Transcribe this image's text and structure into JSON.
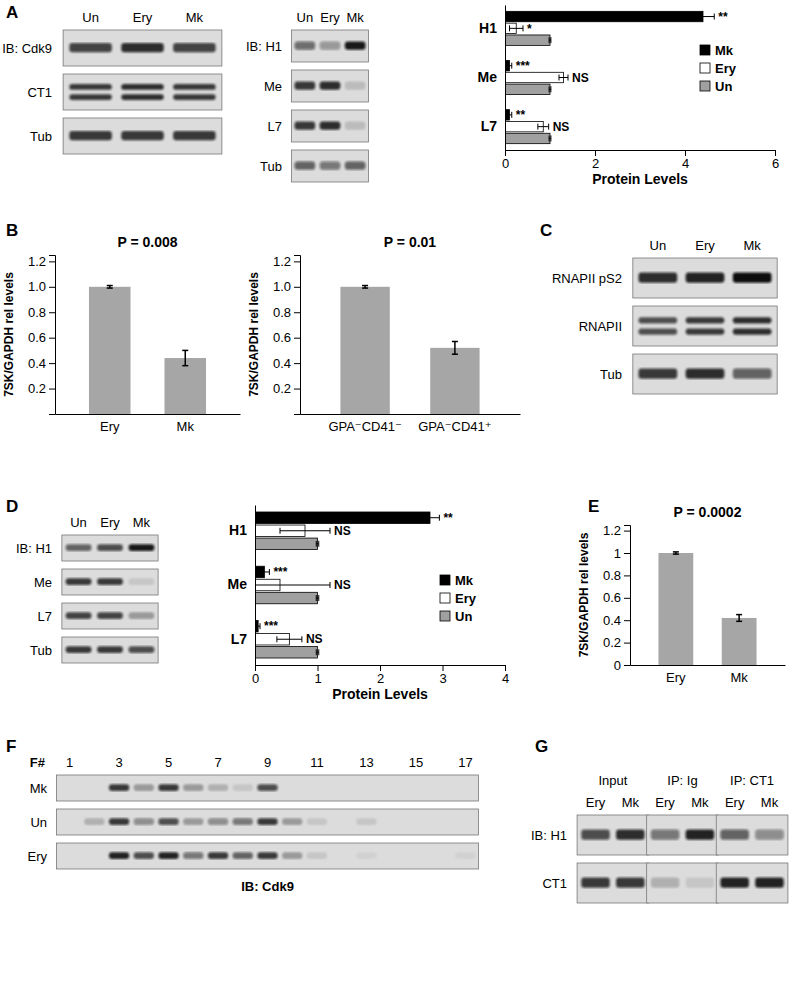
{
  "chart_data": [
    {
      "type": "blot",
      "panel_label": "A",
      "categories": [
        "Un",
        "Ery",
        "Mk"
      ],
      "series": [
        {
          "name": "IB: Cdk9",
          "values": [
            0.75,
            0.85,
            0.75
          ]
        },
        {
          "name": "CT1",
          "values": [
            0.8,
            0.85,
            0.8
          ],
          "marker": "double"
        },
        {
          "name": "Tub",
          "values": [
            0.8,
            0.8,
            0.8
          ]
        }
      ]
    },
    {
      "type": "blot",
      "categories": [
        "Un",
        "Ery",
        "Mk"
      ],
      "series": [
        {
          "name": "IB: H1",
          "values": [
            0.55,
            0.35,
            0.95
          ]
        },
        {
          "name": "Me",
          "values": [
            0.8,
            0.85,
            0.15
          ]
        },
        {
          "name": "L7",
          "values": [
            0.8,
            0.85,
            0.15
          ]
        },
        {
          "name": "Tub",
          "values": [
            0.6,
            0.5,
            0.6
          ]
        }
      ]
    },
    {
      "type": "bar",
      "orientation": "horizontal",
      "categories": [
        "H1",
        "Me",
        "L7"
      ],
      "xlabel": "Protein Levels",
      "xlim": [
        0,
        6
      ],
      "xticks": [
        0,
        2,
        4,
        6
      ],
      "legend": "right",
      "series": [
        {
          "name": "Mk",
          "color": "#000000",
          "values": [
            4.4,
            0.1,
            0.1
          ],
          "errors": [
            0.25,
            0.05,
            0.05
          ],
          "annotations": [
            "**",
            "***",
            "**"
          ]
        },
        {
          "name": "Ery",
          "color": "#ffffff",
          "values": [
            0.25,
            1.3,
            0.85
          ],
          "errors": [
            0.15,
            0.1,
            0.12
          ],
          "annotations": [
            "*",
            "NS",
            "NS"
          ]
        },
        {
          "name": "Un",
          "color": "#a0a0a0",
          "values": [
            1,
            1,
            1
          ],
          "errors": [
            0.02,
            0.02,
            0.02
          ]
        }
      ]
    },
    {
      "type": "bar",
      "panel_label": "B",
      "categories": [
        "Ery",
        "Mk"
      ],
      "values": [
        1,
        0.44
      ],
      "errors": [
        0.01,
        0.06
      ],
      "color": "#a6a6a6",
      "ylabel": "7SK/GAPDH rel levels",
      "annotation": "P = 0.008",
      "ylim": [
        0,
        1.25
      ],
      "yticks": [
        0.2,
        0.4,
        0.6,
        0.8,
        {
          "value": 1,
          "label": "1.0"
        },
        1.2
      ]
    },
    {
      "type": "bar",
      "categories": [
        "GPA⁻CD41⁻",
        "GPA⁻CD41⁺"
      ],
      "values": [
        1,
        0.52
      ],
      "errors": [
        0.01,
        0.05
      ],
      "color": "#a6a6a6",
      "ylabel": "7SK/GAPDH rel levels",
      "annotation": "P = 0.01",
      "ylim": [
        0,
        1.25
      ],
      "yticks": [
        0.2,
        0.4,
        0.6,
        0.8,
        {
          "value": 1,
          "label": "1.0"
        },
        1.2
      ]
    },
    {
      "type": "blot",
      "panel_label": "C",
      "categories": [
        "Un",
        "Ery",
        "Mk"
      ],
      "series": [
        {
          "name": "RNAPII pS2",
          "values": [
            0.85,
            0.9,
            1
          ]
        },
        {
          "name": "RNAPII",
          "values": [
            0.7,
            0.8,
            0.85
          ],
          "marker": "double"
        },
        {
          "name": "Tub",
          "values": [
            0.8,
            0.85,
            0.6
          ]
        }
      ]
    },
    {
      "type": "blot",
      "panel_label": "D",
      "categories": [
        "Un",
        "Ery",
        "Mk"
      ],
      "series": [
        {
          "name": "IB: H1",
          "values": [
            0.6,
            0.7,
            0.95
          ]
        },
        {
          "name": "Me",
          "values": [
            0.8,
            0.8,
            0.1
          ]
        },
        {
          "name": "L7",
          "values": [
            0.75,
            0.75,
            0.3
          ]
        },
        {
          "name": "Tub",
          "values": [
            0.8,
            0.8,
            0.7
          ]
        }
      ]
    },
    {
      "type": "bar",
      "orientation": "horizontal",
      "categories": [
        "H1",
        "Me",
        "L7"
      ],
      "xlabel": "Protein Levels",
      "xlim": [
        0,
        4
      ],
      "xticks": [
        0,
        1,
        2,
        3,
        4
      ],
      "legend": "right",
      "series": [
        {
          "name": "Mk",
          "color": "#000000",
          "values": [
            2.8,
            0.15,
            0.05
          ],
          "errors": [
            0.15,
            0.08,
            0.03
          ],
          "annotations": [
            "**",
            "***",
            "***"
          ]
        },
        {
          "name": "Ery",
          "color": "#ffffff",
          "values": [
            0.8,
            0.4,
            0.55
          ],
          "errors": [
            0.4,
            0.8,
            0.2
          ],
          "annotations": [
            "NS",
            "NS",
            "NS"
          ]
        },
        {
          "name": "Un",
          "color": "#a0a0a0",
          "values": [
            1,
            1,
            1
          ],
          "errors": [
            0.02,
            0.02,
            0.02
          ]
        }
      ]
    },
    {
      "type": "bar",
      "panel_label": "E",
      "categories": [
        "Ery",
        "Mk"
      ],
      "values": [
        1,
        0.42
      ],
      "errors": [
        0.01,
        0.03
      ],
      "color": "#a6a6a6",
      "ylabel": "7SK/GAPDH rel levels",
      "annotation": "P = 0.0002",
      "ylim": [
        0,
        1.25
      ],
      "yticks": [
        0,
        0.2,
        0.4,
        0.6,
        0.8,
        1,
        1.2
      ]
    },
    {
      "type": "blot",
      "panel_label": "F",
      "xlabel": "F#",
      "annotation": "IB: Cdk9",
      "categories": [
        "1",
        null,
        "3",
        null,
        "5",
        null,
        "7",
        null,
        "9",
        null,
        "11",
        null,
        "13",
        null,
        "15",
        null,
        "17"
      ],
      "series": [
        {
          "name": "Mk",
          "values": [
            0,
            0,
            0.8,
            0.3,
            0.8,
            0.3,
            0.2,
            0.1,
            0.7,
            0,
            0,
            0,
            0,
            0,
            0,
            0,
            0
          ]
        },
        {
          "name": "Un",
          "values": [
            0,
            0.2,
            0.8,
            0.4,
            0.7,
            0.3,
            0.4,
            0.5,
            0.8,
            0.3,
            0.1,
            0,
            0.1,
            0,
            0,
            0,
            0
          ]
        },
        {
          "name": "Ery",
          "values": [
            0,
            0,
            0.9,
            0.7,
            0.9,
            0.5,
            0.8,
            0.6,
            0.8,
            0.3,
            0.1,
            0,
            0.05,
            0,
            0,
            0,
            0.05
          ]
        }
      ]
    },
    {
      "type": "blot",
      "panel_label": "G",
      "categories": [
        "Ery",
        "Mk",
        "Ery",
        "Mk",
        "Ery",
        "Mk"
      ],
      "annotations": [
        "Input",
        "IP: Ig",
        "IP: CT1"
      ],
      "series": [
        {
          "name": "IB: H1",
          "values": [
            0.7,
            0.85,
            0.5,
            0.9,
            0.6,
            0.4
          ]
        },
        {
          "name": "CT1",
          "values": [
            0.8,
            0.8,
            0.2,
            0.1,
            0.9,
            0.9
          ]
        }
      ]
    }
  ]
}
